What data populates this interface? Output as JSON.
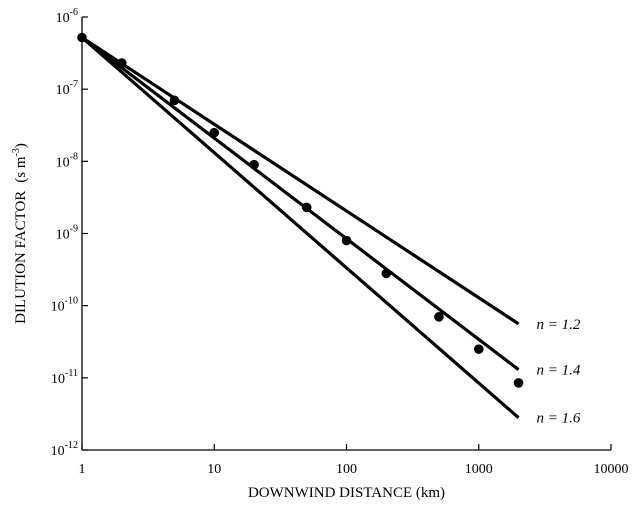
{
  "chart_data": {
    "type": "scatter",
    "xlabel": "DOWNWIND DISTANCE (km)",
    "ylabel": "DILUTION FACTOR",
    "ylabel_unit": "(s m",
    "ylabel_unit_exp": "-3",
    "ylabel_unit_close": ")",
    "x_scale": "log",
    "y_scale": "log",
    "xlim": [
      1,
      10000
    ],
    "ylim": [
      1e-12,
      1e-06
    ],
    "grid": false,
    "x_ticks": [
      {
        "value": 1,
        "label": "1"
      },
      {
        "value": 10,
        "label": "10"
      },
      {
        "value": 100,
        "label": "100"
      },
      {
        "value": 1000,
        "label": "1000"
      },
      {
        "value": 10000,
        "label": "10000"
      }
    ],
    "y_ticks": [
      {
        "value": 1e-06,
        "base": "10",
        "exp": "-6"
      },
      {
        "value": 1e-07,
        "base": "10",
        "exp": "-7"
      },
      {
        "value": 1e-08,
        "base": "10",
        "exp": "-8"
      },
      {
        "value": 1e-09,
        "base": "10",
        "exp": "-9"
      },
      {
        "value": 1e-10,
        "base": "10",
        "exp": "-10"
      },
      {
        "value": 1e-11,
        "base": "10",
        "exp": "-11"
      },
      {
        "value": 1e-12,
        "base": "10",
        "exp": "-12"
      }
    ],
    "lines": [
      {
        "label": "n = 1.2",
        "x": [
          1,
          2000
        ],
        "y": [
          5.2e-07,
          5.6e-11
        ]
      },
      {
        "label": "n = 1.4",
        "x": [
          1,
          2000
        ],
        "y": [
          5.2e-07,
          1.3e-11
        ]
      },
      {
        "label": "n = 1.6",
        "x": [
          1,
          2000
        ],
        "y": [
          5.2e-07,
          2.8e-12
        ]
      }
    ],
    "points": {
      "x": [
        1,
        2,
        5,
        10,
        20,
        50,
        100,
        200,
        500,
        1000,
        2000
      ],
      "y": [
        5.2e-07,
        2.3e-07,
        7e-08,
        2.5e-08,
        9e-09,
        2.3e-09,
        8e-10,
        2.8e-10,
        7e-11,
        2.5e-11,
        8.5e-12
      ]
    }
  }
}
